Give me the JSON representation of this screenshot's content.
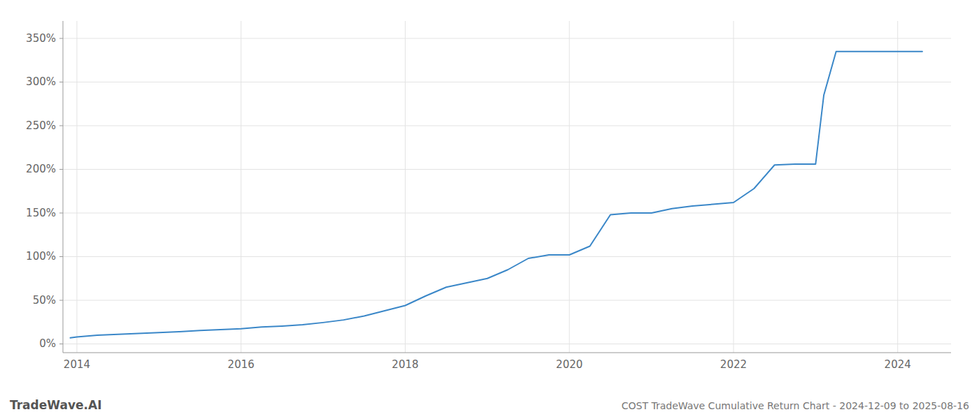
{
  "chart_data": {
    "type": "line",
    "title": "COST TradeWave Cumulative Return Chart - 2024-12-09 to 2025-08-16",
    "annotations": [
      "TradeWave.AI"
    ],
    "color": "#3a87c8",
    "grid": true,
    "x": [
      2013.92,
      2014.0,
      2014.25,
      2014.5,
      2014.75,
      2015.0,
      2015.25,
      2015.5,
      2015.75,
      2016.0,
      2016.25,
      2016.5,
      2016.75,
      2017.0,
      2017.25,
      2017.5,
      2017.75,
      2018.0,
      2018.25,
      2018.5,
      2018.75,
      2019.0,
      2019.25,
      2019.5,
      2019.75,
      2020.0,
      2020.25,
      2020.5,
      2020.75,
      2021.0,
      2021.25,
      2021.5,
      2021.75,
      2022.0,
      2022.25,
      2022.5,
      2022.75,
      2023.0,
      2023.1,
      2023.25,
      2023.5,
      2023.75,
      2024.0,
      2024.3
    ],
    "values": [
      0.07,
      0.08,
      0.1,
      0.11,
      0.12,
      0.13,
      0.14,
      0.155,
      0.165,
      0.175,
      0.195,
      0.205,
      0.22,
      0.245,
      0.275,
      0.32,
      0.38,
      0.44,
      0.55,
      0.65,
      0.7,
      0.75,
      0.85,
      0.98,
      1.02,
      1.02,
      1.12,
      1.48,
      1.5,
      1.5,
      1.55,
      1.58,
      1.6,
      1.62,
      1.78,
      2.05,
      2.06,
      2.06,
      2.85,
      3.35,
      3.35,
      3.35,
      3.35,
      3.35
    ],
    "xlim": [
      2013.83,
      2024.65
    ],
    "ylim": [
      -0.1,
      3.7
    ],
    "xticks": [
      2014,
      2016,
      2018,
      2020,
      2022,
      2024
    ],
    "yticks": [
      {
        "value": 0.0,
        "label": "0%"
      },
      {
        "value": 0.5,
        "label": "50%"
      },
      {
        "value": 1.0,
        "label": "100%"
      },
      {
        "value": 1.5,
        "label": "150%"
      },
      {
        "value": 2.0,
        "label": "200%"
      },
      {
        "value": 2.5,
        "label": "250%"
      },
      {
        "value": 3.0,
        "label": "300%"
      },
      {
        "value": 3.5,
        "label": "350%"
      }
    ]
  }
}
